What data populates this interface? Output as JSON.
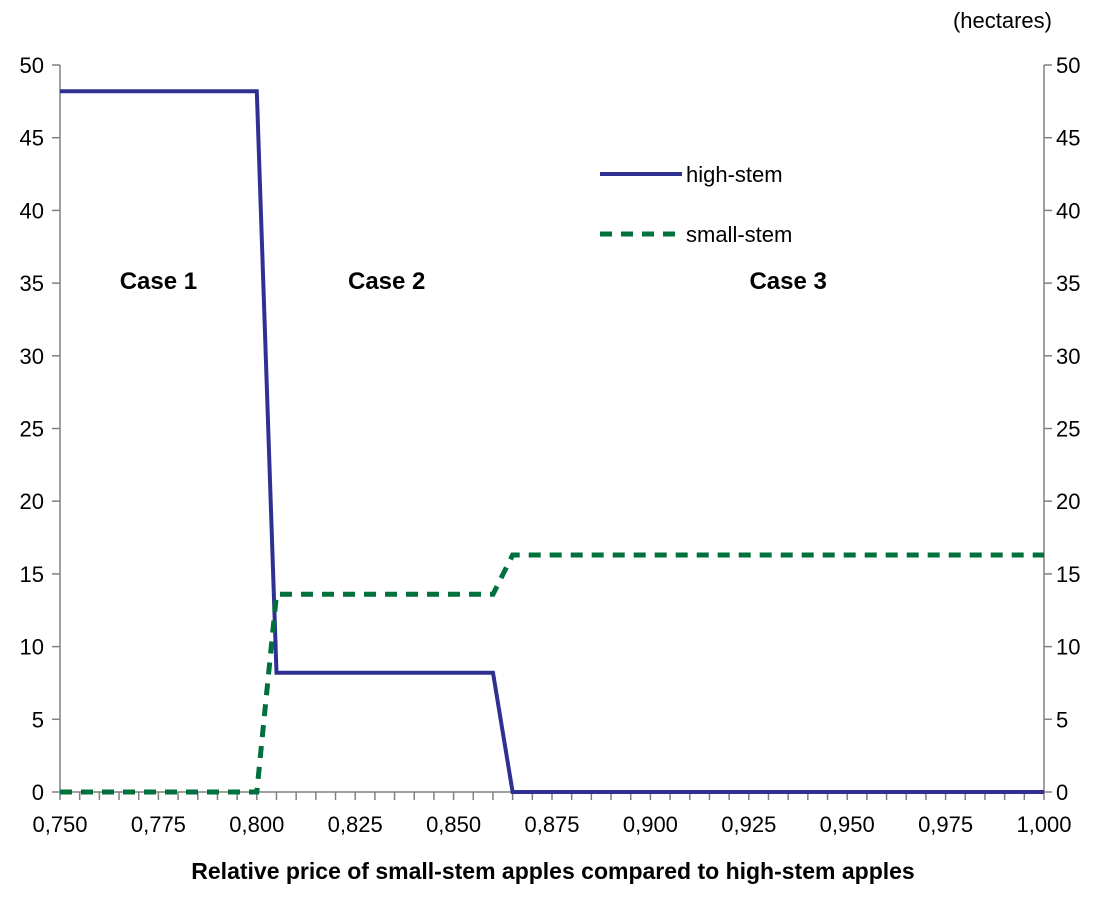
{
  "chart_data": {
    "type": "line",
    "title": "",
    "xlabel": "Relative price of small-stem apples compared to high-stem apples",
    "ylabel": "",
    "unit_label": "(hectares)",
    "xlim": [
      0.75,
      1.0
    ],
    "ylim": [
      0,
      50
    ],
    "x_ticks": [
      0.75,
      0.775,
      0.8,
      0.825,
      0.85,
      0.875,
      0.9,
      0.925,
      0.95,
      0.975,
      1.0
    ],
    "x_tick_labels": [
      "0,750",
      "0,775",
      "0,800",
      "0,825",
      "0,850",
      "0,875",
      "0,900",
      "0,925",
      "0,950",
      "0,975",
      "1,000"
    ],
    "x_minor_step": 0.005,
    "y_ticks": [
      0,
      5,
      10,
      15,
      20,
      25,
      30,
      35,
      40,
      45,
      50
    ],
    "y_tick_labels": [
      "0",
      "5",
      "10",
      "15",
      "20",
      "25",
      "30",
      "35",
      "40",
      "45",
      "50"
    ],
    "secondary_y_axis": true,
    "grid": false,
    "legend_position": "top-center",
    "series": [
      {
        "name": "high-stem",
        "color": "#2e3192",
        "style": "solid",
        "points": [
          [
            0.75,
            48.2
          ],
          [
            0.8,
            48.2
          ],
          [
            0.805,
            8.2
          ],
          [
            0.86,
            8.2
          ],
          [
            0.865,
            0
          ],
          [
            1.0,
            0
          ]
        ]
      },
      {
        "name": "small-stem",
        "color": "#00703c",
        "style": "dashed",
        "points": [
          [
            0.75,
            0
          ],
          [
            0.8,
            0
          ],
          [
            0.805,
            13.6
          ],
          [
            0.86,
            13.6
          ],
          [
            0.865,
            16.3
          ],
          [
            1.0,
            16.3
          ]
        ]
      }
    ],
    "annotations": [
      {
        "text": "Case 1",
        "x": 0.775,
        "y": 34.6
      },
      {
        "text": "Case 2",
        "x": 0.833,
        "y": 34.6
      },
      {
        "text": "Case 3",
        "x": 0.935,
        "y": 34.6
      }
    ]
  }
}
